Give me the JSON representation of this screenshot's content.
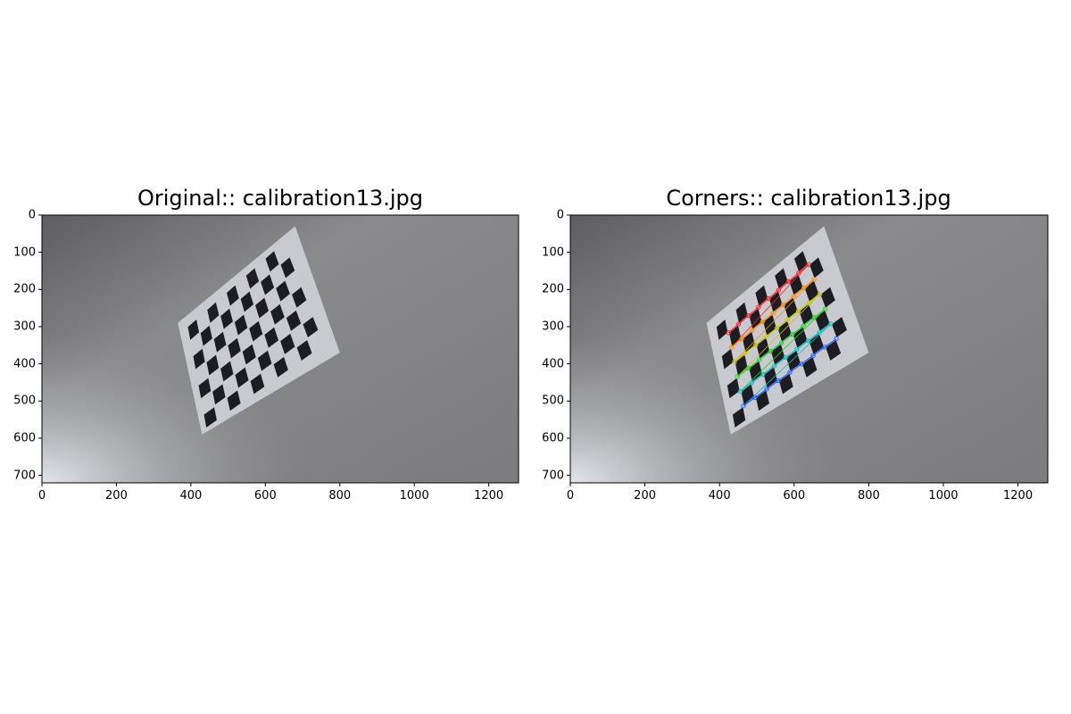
{
  "panels": [
    {
      "title": "Original:: calibration13.jpg",
      "image": "gray-floor-photo with tilted checkerboard calibration pattern",
      "corner_overlay": false
    },
    {
      "title": "Corners:: calibration13.jpg",
      "image": "gray-floor-photo with tilted checkerboard calibration pattern",
      "corner_overlay": true
    }
  ],
  "axes": {
    "x_ticks": [
      "0",
      "200",
      "400",
      "600",
      "800",
      "1000",
      "1200"
    ],
    "y_ticks": [
      "0",
      "100",
      "200",
      "300",
      "400",
      "500",
      "600",
      "700"
    ],
    "x_range": [
      0,
      1280
    ],
    "y_range": [
      0,
      720
    ]
  },
  "corner_row_colors": [
    "#ff2020",
    "#ff8c00",
    "#c8c800",
    "#20d020",
    "#00c0c0",
    "#2060ff",
    "#3030ff"
  ]
}
